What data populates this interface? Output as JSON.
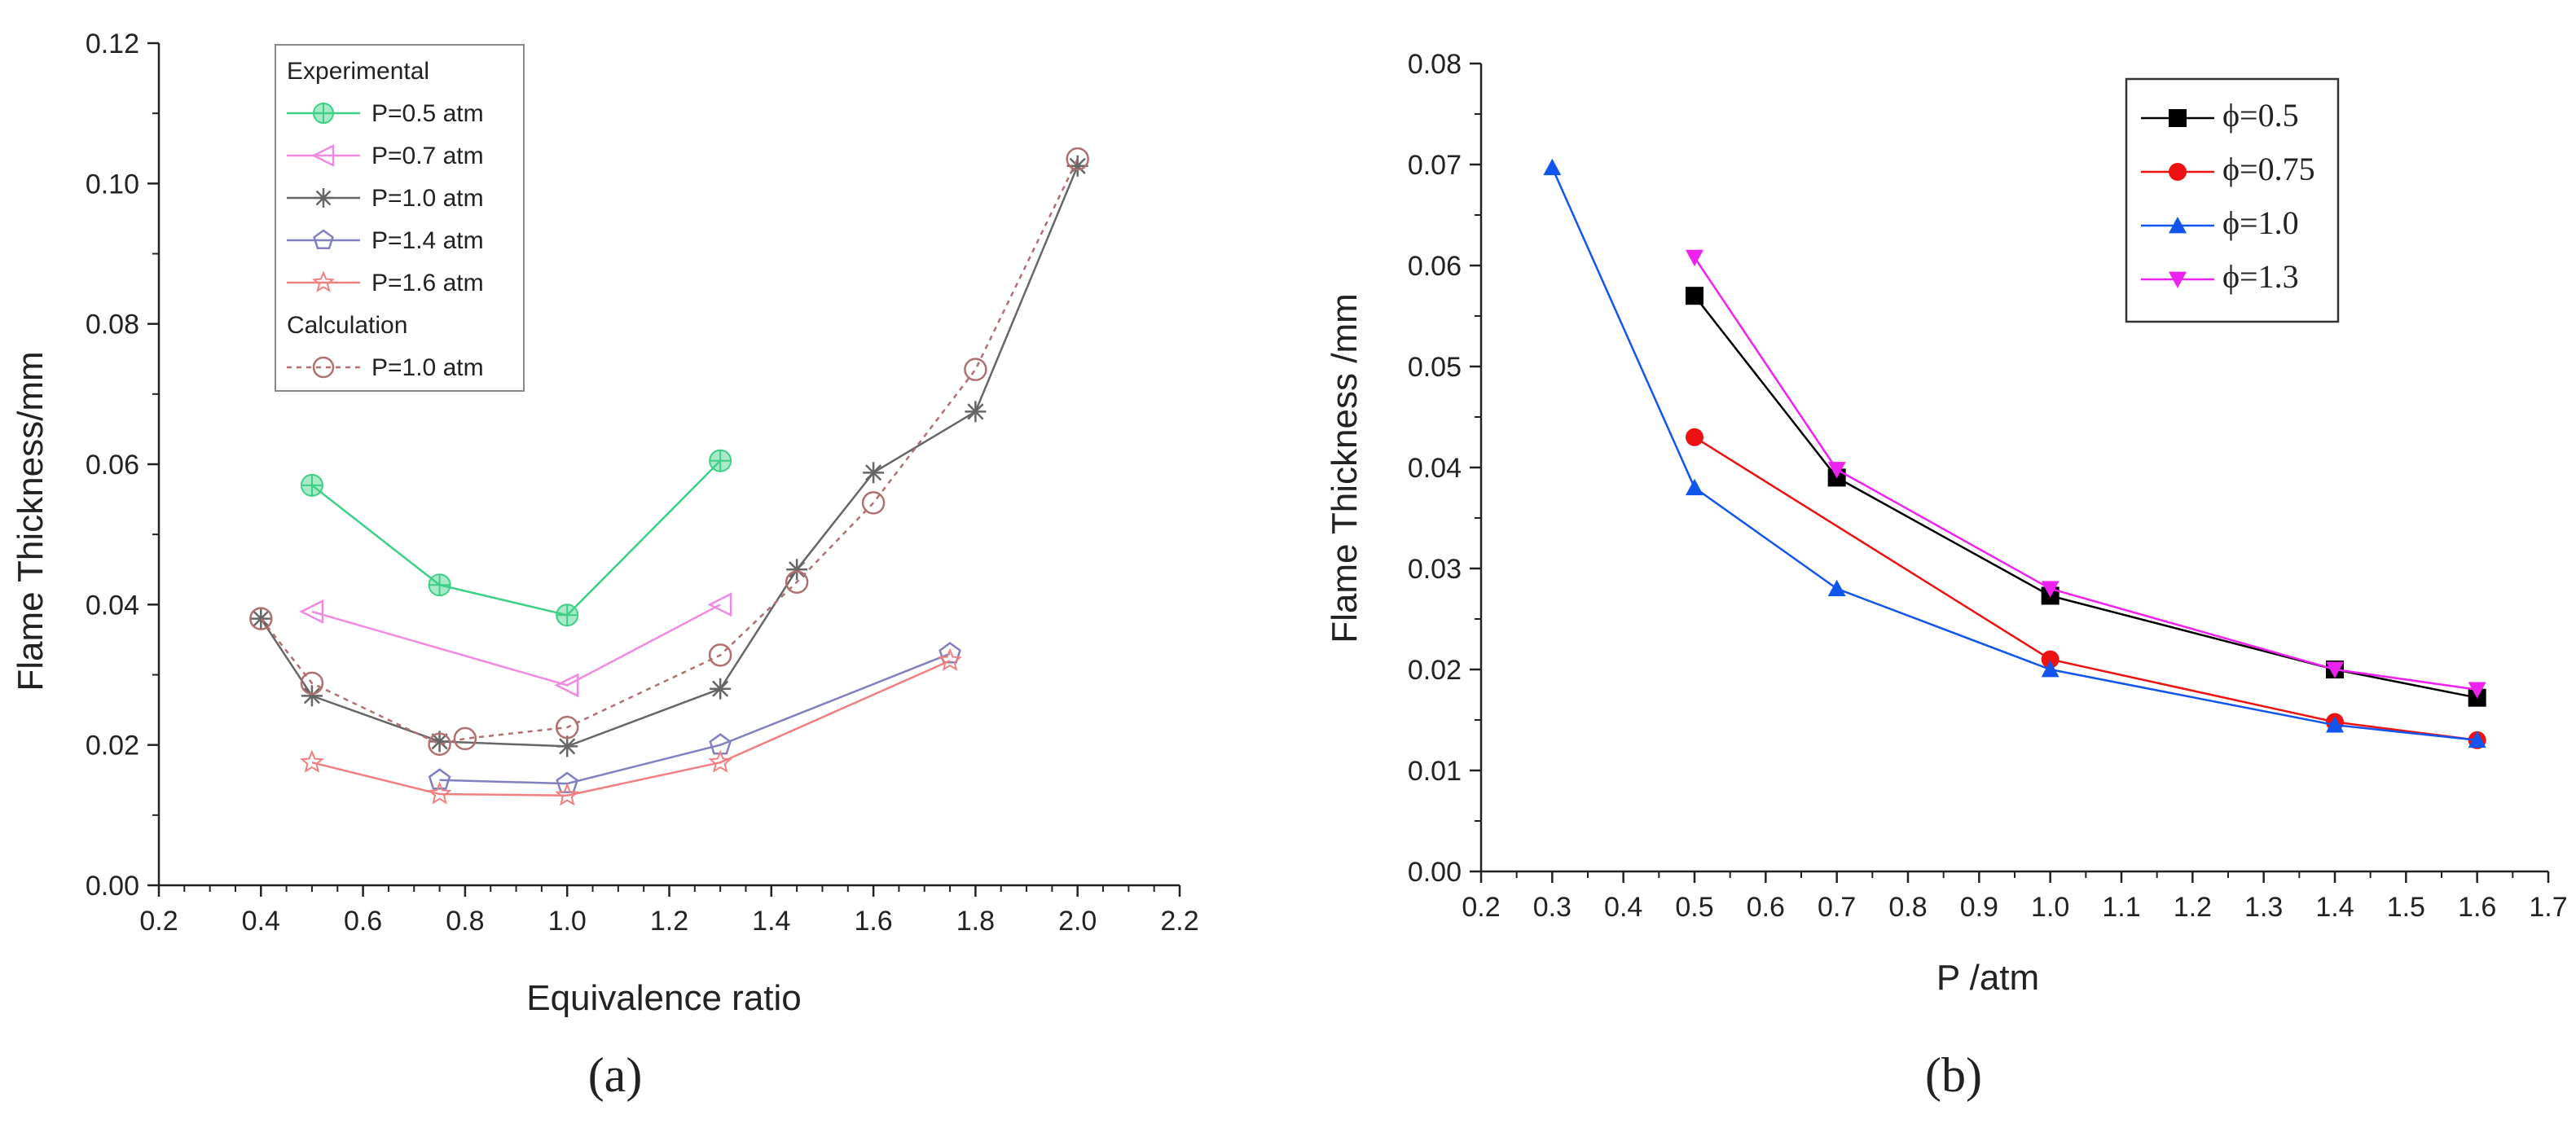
{
  "chart_data": [
    {
      "type": "line",
      "panel_label": "(a)",
      "xlabel": "Equivalence ratio",
      "ylabel": "Flame Thickness/mm",
      "xlim": [
        0.2,
        2.2
      ],
      "ylim": [
        0.0,
        0.12
      ],
      "x_ticks": [
        "0.2",
        "0.4",
        "0.6",
        "0.8",
        "1.0",
        "1.2",
        "1.4",
        "1.6",
        "1.8",
        "2.0",
        "2.2"
      ],
      "y_ticks": [
        "0.00",
        "0.02",
        "0.04",
        "0.06",
        "0.08",
        "0.10",
        "0.12"
      ],
      "legend": {
        "position": "top-left",
        "group_titles": [
          "Experimental",
          "Calculation"
        ]
      },
      "series": [
        {
          "name": "P=0.5 atm",
          "group": "Experimental",
          "color": "#3ecf86",
          "marker": "circle-plus",
          "dash": false,
          "x": [
            0.5,
            0.75,
            1.0,
            1.3
          ],
          "y": [
            0.057,
            0.0428,
            0.0385,
            0.0605
          ]
        },
        {
          "name": "P=0.7 atm",
          "group": "Experimental",
          "color": "#f08ae0",
          "marker": "triangle-left",
          "dash": false,
          "x": [
            0.5,
            1.0,
            1.3
          ],
          "y": [
            0.039,
            0.0285,
            0.04
          ]
        },
        {
          "name": "P=1.0 atm",
          "group": "Experimental",
          "color": "#666666",
          "marker": "asterisk",
          "dash": false,
          "x": [
            0.4,
            0.5,
            0.75,
            1.0,
            1.3,
            1.45,
            1.6,
            1.8,
            2.0
          ],
          "y": [
            0.038,
            0.027,
            0.0205,
            0.0198,
            0.028,
            0.045,
            0.0588,
            0.0675,
            0.1025
          ]
        },
        {
          "name": "P=1.4 atm",
          "group": "Experimental",
          "color": "#8080c0",
          "marker": "pentagon",
          "dash": false,
          "x": [
            0.75,
            1.0,
            1.3,
            1.75
          ],
          "y": [
            0.015,
            0.0145,
            0.02,
            0.033
          ]
        },
        {
          "name": "P=1.6 atm",
          "group": "Experimental",
          "color": "#f08080",
          "marker": "star",
          "dash": false,
          "x": [
            0.5,
            0.75,
            1.0,
            1.3,
            1.75
          ],
          "y": [
            0.0175,
            0.013,
            0.0128,
            0.0175,
            0.032
          ]
        },
        {
          "name": "P=1.0 atm",
          "group": "Calculation",
          "color": "#b07070",
          "marker": "circle-open",
          "dash": true,
          "x": [
            0.4,
            0.5,
            0.75,
            0.8,
            1.0,
            1.3,
            1.45,
            1.6,
            1.8,
            2.0
          ],
          "y": [
            0.038,
            0.0288,
            0.0201,
            0.0209,
            0.0225,
            0.0328,
            0.0432,
            0.0545,
            0.0735,
            0.1035
          ]
        }
      ]
    },
    {
      "type": "line",
      "panel_label": "(b)",
      "xlabel": "P /atm",
      "ylabel": "Flame Thickness /mm",
      "xlim": [
        0.2,
        1.7
      ],
      "ylim": [
        0.0,
        0.08
      ],
      "x_ticks": [
        "0.2",
        "0.3",
        "0.4",
        "0.5",
        "0.6",
        "0.7",
        "0.8",
        "0.9",
        "1.0",
        "1.1",
        "1.2",
        "1.3",
        "1.4",
        "1.5",
        "1.6",
        "1.7"
      ],
      "y_ticks": [
        "0.00",
        "0.01",
        "0.02",
        "0.03",
        "0.04",
        "0.05",
        "0.06",
        "0.07",
        "0.08"
      ],
      "legend": {
        "position": "top-right"
      },
      "series": [
        {
          "name": "ϕ=0.5",
          "color": "#000000",
          "marker": "square",
          "x": [
            0.5,
            0.7,
            1.0,
            1.4,
            1.6
          ],
          "y": [
            0.057,
            0.039,
            0.0273,
            0.02,
            0.0172
          ]
        },
        {
          "name": "ϕ=0.75",
          "color": "#ee1111",
          "marker": "circle",
          "x": [
            0.5,
            1.0,
            1.4,
            1.6
          ],
          "y": [
            0.043,
            0.021,
            0.0148,
            0.013
          ]
        },
        {
          "name": "ϕ=1.0",
          "color": "#1155ee",
          "marker": "triangle-up",
          "x": [
            0.3,
            0.5,
            0.7,
            1.0,
            1.4,
            1.6
          ],
          "y": [
            0.0697,
            0.038,
            0.028,
            0.02,
            0.0145,
            0.013
          ]
        },
        {
          "name": "ϕ=1.3",
          "color": "#ee22ee",
          "marker": "triangle-down",
          "x": [
            0.5,
            0.7,
            1.0,
            1.4,
            1.6
          ],
          "y": [
            0.0608,
            0.0398,
            0.028,
            0.02,
            0.018
          ]
        }
      ]
    }
  ]
}
